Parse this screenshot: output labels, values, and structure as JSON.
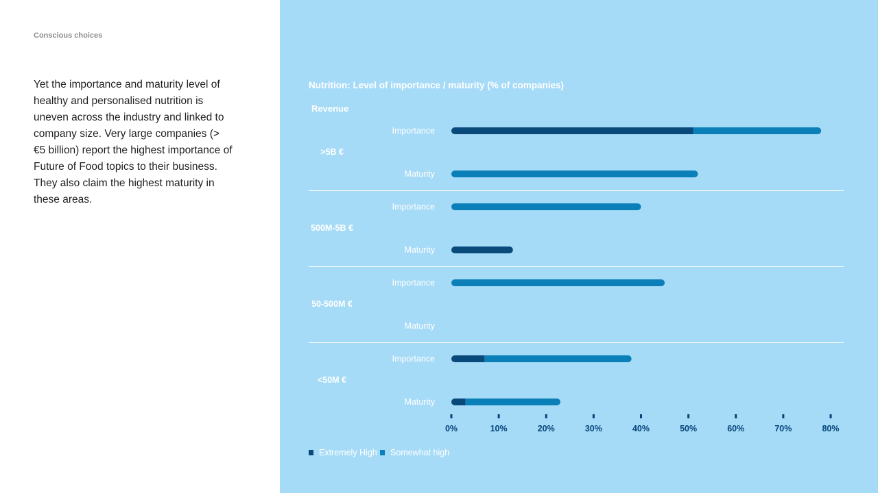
{
  "page": {
    "kicker": "Conscious choices",
    "body": "Yet the importance and maturity level of healthy and personalised nutrition is uneven across the industry and linked to company size. Very large companies (> €5 billion) report the highest importance of Future of Food topics to their business. They also claim the highest maturity in these areas."
  },
  "colors": {
    "panel_bg": "#a6dbf7",
    "extremely_high": "#0a4a7a",
    "somewhat_high": "#0a7fb8",
    "text_white": "#ffffff",
    "tick_color": "#06457a"
  },
  "chart_data": {
    "type": "bar",
    "orientation": "horizontal",
    "stacked": true,
    "title": "Nutrition: Level of importance / maturity (% of companies)",
    "group_header": "Revenue",
    "xlim": [
      0,
      80
    ],
    "xticks": [
      "0%",
      "10%",
      "20%",
      "30%",
      "40%",
      "50%",
      "60%",
      "70%",
      "80%"
    ],
    "legend": {
      "placement": "bottom-left",
      "entries": [
        {
          "name": "Extremely High",
          "color": "#0a4a7a"
        },
        {
          "name": "Somewhat high",
          "color": "#0a7fb8"
        }
      ]
    },
    "groups": [
      {
        "label": ">5B €",
        "rows": [
          {
            "label": "Importance",
            "extremely_high": 51,
            "somewhat_high": 27
          },
          {
            "label": "Maturity",
            "extremely_high": 0,
            "somewhat_high": 52
          }
        ]
      },
      {
        "label": "500M-5B €",
        "rows": [
          {
            "label": "Importance",
            "extremely_high": 0,
            "somewhat_high": 40
          },
          {
            "label": "Maturity",
            "extremely_high": 13,
            "somewhat_high": 0
          }
        ]
      },
      {
        "label": "50-500M €",
        "rows": [
          {
            "label": "Importance",
            "extremely_high": 0,
            "somewhat_high": 45
          },
          {
            "label": "Maturity",
            "extremely_high": 0,
            "somewhat_high": 0
          }
        ]
      },
      {
        "label": "<50M €",
        "rows": [
          {
            "label": "Importance",
            "extremely_high": 7,
            "somewhat_high": 31
          },
          {
            "label": "Maturity",
            "extremely_high": 3,
            "somewhat_high": 20
          }
        ]
      }
    ]
  }
}
